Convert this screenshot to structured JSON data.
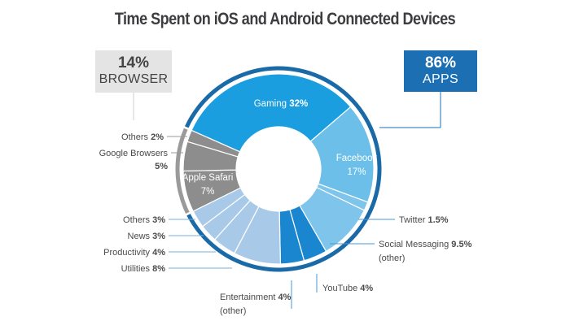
{
  "title": "Time Spent on iOS and Android Connected Devices",
  "summary": {
    "browser": {
      "pct": "14%",
      "label": "BROWSER",
      "color": "#e4e4e4"
    },
    "apps": {
      "pct": "86%",
      "label": "APPS",
      "color": "#1c6fb3"
    }
  },
  "labels": {
    "gaming": {
      "name": "Gaming",
      "value": "32%"
    },
    "facebook": {
      "name": "Facebook",
      "value": "17%"
    },
    "twitter": {
      "name": "Twitter",
      "value": "1.5%"
    },
    "social": {
      "name": "Social Messaging",
      "value": "9.5%",
      "note": "(other)"
    },
    "youtube": {
      "name": "YouTube",
      "value": "4%"
    },
    "entertainment": {
      "name": "Entertainment",
      "value": "4%",
      "note": "(other)"
    },
    "utilities": {
      "name": "Utilities",
      "value": "8%"
    },
    "productivity": {
      "name": "Productivity",
      "value": "4%"
    },
    "news": {
      "name": "News",
      "value": "3%"
    },
    "others_apps": {
      "name": "Others",
      "value": "3%"
    },
    "safari": {
      "name": "Apple Safari",
      "value": "7%"
    },
    "google": {
      "name": "Google Browsers",
      "value": "5%"
    },
    "others_browser": {
      "name": "Others",
      "value": "2%"
    }
  },
  "chart_data": {
    "type": "pie",
    "variant": "donut",
    "title": "Time Spent on iOS and Android Connected Devices",
    "groups": [
      {
        "name": "APPS",
        "value": 86
      },
      {
        "name": "BROWSER",
        "value": 14
      }
    ],
    "categories": [
      "Gaming",
      "Facebook",
      "Twitter",
      "Social Messaging (other)",
      "YouTube",
      "Entertainment (other)",
      "Utilities",
      "Productivity",
      "News",
      "Others (apps)",
      "Apple Safari",
      "Google Browsers",
      "Others (browser)"
    ],
    "values": [
      32,
      17,
      1.5,
      9.5,
      4,
      4,
      8,
      4,
      3,
      3,
      7,
      5,
      2
    ],
    "group_of": [
      "APPS",
      "APPS",
      "APPS",
      "APPS",
      "APPS",
      "APPS",
      "APPS",
      "APPS",
      "APPS",
      "APPS",
      "BROWSER",
      "BROWSER",
      "BROWSER"
    ],
    "colors": [
      "#1a9ee0",
      "#6bbfe8",
      "#7fc4ea",
      "#7fc4ea",
      "#1b86d0",
      "#1b86d0",
      "#a9c9e8",
      "#a9c9e8",
      "#a9c9e8",
      "#a9c9e8",
      "#8d8d8d",
      "#8d8d8d",
      "#8d8d8d"
    ],
    "unit": "%",
    "legend": "none (direct labels)"
  }
}
